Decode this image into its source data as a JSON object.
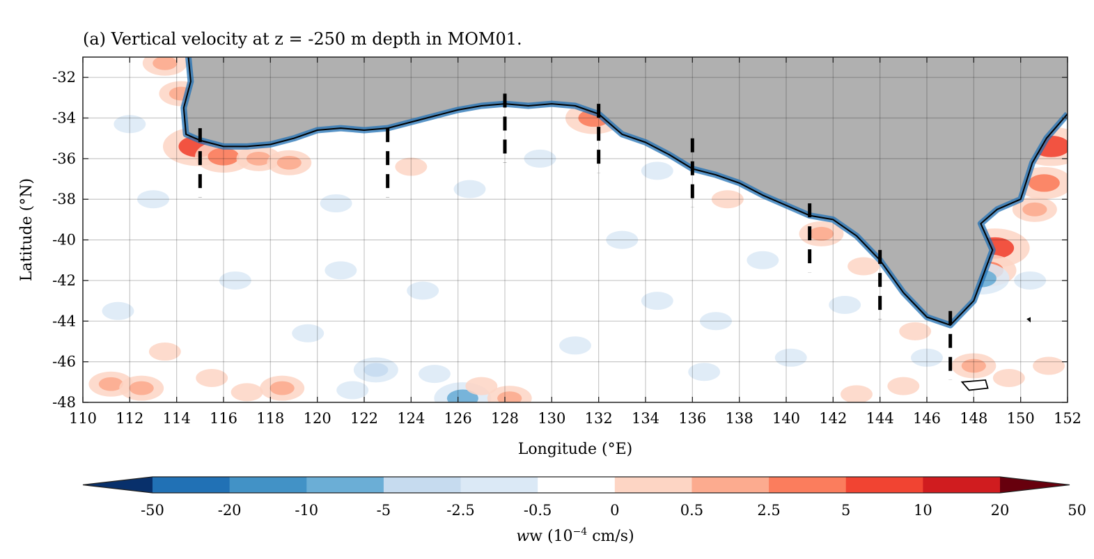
{
  "chart_data": {
    "type": "heatmap",
    "title": "(a) Vertical velocity at z = -250 m depth in MOM01.",
    "xlabel": "Longitude (°E)",
    "ylabel": "Latitude (°N)",
    "xlim": [
      110,
      152
    ],
    "ylim": [
      -48,
      -31
    ],
    "x_ticks": [
      110,
      112,
      114,
      116,
      118,
      120,
      122,
      124,
      126,
      128,
      130,
      132,
      134,
      136,
      138,
      140,
      142,
      144,
      146,
      148,
      150,
      152
    ],
    "y_ticks": [
      -48,
      -46,
      -44,
      -42,
      -40,
      -38,
      -36,
      -34,
      -32
    ],
    "grid": true,
    "colorbar": {
      "label_base": "w (10",
      "label_exp": "−4",
      "label_unit": " cm/s)",
      "levels": [
        "-50",
        "-20",
        "-10",
        "-5",
        "-2.5",
        "-0.5",
        "0",
        "0.5",
        "2.5",
        "5",
        "10",
        "20",
        "50"
      ],
      "colors": [
        "#08306b",
        "#2171b5",
        "#4292c6",
        "#6baed6",
        "#c6dbef",
        "#dbe9f6",
        "#ffffff",
        "#fdd5c4",
        "#fcab8f",
        "#fb7d5d",
        "#f14432",
        "#d01c1f",
        "#67000d"
      ],
      "extend": "both"
    },
    "land_color": "#b0b0b0",
    "coastline": [
      [
        114.5,
        -31
      ],
      [
        114.6,
        -32.2
      ],
      [
        114.3,
        -33.5
      ],
      [
        114.4,
        -34.8
      ],
      [
        115,
        -35.1
      ],
      [
        116,
        -35.4
      ],
      [
        117,
        -35.4
      ],
      [
        118,
        -35.3
      ],
      [
        119,
        -35.0
      ],
      [
        120,
        -34.6
      ],
      [
        121,
        -34.5
      ],
      [
        122,
        -34.6
      ],
      [
        123,
        -34.5
      ],
      [
        124,
        -34.2
      ],
      [
        125,
        -33.9
      ],
      [
        126,
        -33.6
      ],
      [
        127,
        -33.4
      ],
      [
        128,
        -33.3
      ],
      [
        129,
        -33.4
      ],
      [
        130,
        -33.3
      ],
      [
        131,
        -33.4
      ],
      [
        132,
        -33.8
      ],
      [
        133,
        -34.8
      ],
      [
        134,
        -35.2
      ],
      [
        135,
        -35.8
      ],
      [
        136,
        -36.5
      ],
      [
        137,
        -36.8
      ],
      [
        138,
        -37.2
      ],
      [
        139,
        -37.8
      ],
      [
        140,
        -38.3
      ],
      [
        141,
        -38.8
      ],
      [
        142,
        -39.0
      ],
      [
        143,
        -39.8
      ],
      [
        144,
        -41.0
      ],
      [
        145,
        -42.6
      ],
      [
        146,
        -43.8
      ],
      [
        147,
        -44.2
      ],
      [
        148,
        -43.0
      ],
      [
        148.8,
        -40.5
      ],
      [
        148.3,
        -39.2
      ],
      [
        149,
        -38.5
      ],
      [
        150,
        -38.0
      ],
      [
        150.5,
        -36.2
      ],
      [
        151.1,
        -35.0
      ],
      [
        152,
        -33.8
      ]
    ],
    "sections": [
      {
        "lon": 115,
        "lat_start": -34.5,
        "lat_end": -37.9
      },
      {
        "lon": 123,
        "lat_start": -34.5,
        "lat_end": -37.9
      },
      {
        "lon": 128,
        "lat_start": -32.8,
        "lat_end": -36.2
      },
      {
        "lon": 132,
        "lat_start": -33.3,
        "lat_end": -36.7
      },
      {
        "lon": 136,
        "lat_start": -35.0,
        "lat_end": -38.4
      },
      {
        "lon": 141,
        "lat_start": -38.2,
        "lat_end": -41.6
      },
      {
        "lon": 144,
        "lat_start": -40.5,
        "lat_end": -43.9
      },
      {
        "lon": 147,
        "lat_start": -43.5,
        "lat_end": -46.9
      }
    ],
    "anomalies": [
      {
        "lon": 114.9,
        "lat": -35.4,
        "sign": 1,
        "strength": 4
      },
      {
        "lon": 116.0,
        "lat": -35.9,
        "sign": 1,
        "strength": 3
      },
      {
        "lon": 117.5,
        "lat": -36.0,
        "sign": 1,
        "strength": 2
      },
      {
        "lon": 118.8,
        "lat": -36.2,
        "sign": 1,
        "strength": 2
      },
      {
        "lon": 114.2,
        "lat": -32.8,
        "sign": 1,
        "strength": 2
      },
      {
        "lon": 113.5,
        "lat": -31.3,
        "sign": 1,
        "strength": 2
      },
      {
        "lon": 112.0,
        "lat": -34.3,
        "sign": -1,
        "strength": 1
      },
      {
        "lon": 113.0,
        "lat": -38.0,
        "sign": -1,
        "strength": 1
      },
      {
        "lon": 120.8,
        "lat": -38.2,
        "sign": -1,
        "strength": 1
      },
      {
        "lon": 124.0,
        "lat": -36.4,
        "sign": 1,
        "strength": 1
      },
      {
        "lon": 126.5,
        "lat": -37.5,
        "sign": -1,
        "strength": 1
      },
      {
        "lon": 119.6,
        "lat": -44.6,
        "sign": -1,
        "strength": 1
      },
      {
        "lon": 113.5,
        "lat": -45.5,
        "sign": 1,
        "strength": 1
      },
      {
        "lon": 115.5,
        "lat": -46.8,
        "sign": 1,
        "strength": 1
      },
      {
        "lon": 111.2,
        "lat": -47.1,
        "sign": 1,
        "strength": 2
      },
      {
        "lon": 112.5,
        "lat": -47.3,
        "sign": 1,
        "strength": 2
      },
      {
        "lon": 117.0,
        "lat": -47.5,
        "sign": 1,
        "strength": 1
      },
      {
        "lon": 118.5,
        "lat": -47.3,
        "sign": 1,
        "strength": 2
      },
      {
        "lon": 122.5,
        "lat": -46.4,
        "sign": -1,
        "strength": 2
      },
      {
        "lon": 121.5,
        "lat": -47.4,
        "sign": -1,
        "strength": 1
      },
      {
        "lon": 125.0,
        "lat": -46.6,
        "sign": -1,
        "strength": 1
      },
      {
        "lon": 126.2,
        "lat": -47.8,
        "sign": -1,
        "strength": 3
      },
      {
        "lon": 127.0,
        "lat": -47.2,
        "sign": 1,
        "strength": 1
      },
      {
        "lon": 128.2,
        "lat": -47.8,
        "sign": 1,
        "strength": 2
      },
      {
        "lon": 131.0,
        "lat": -45.2,
        "sign": -1,
        "strength": 1
      },
      {
        "lon": 134.5,
        "lat": -43.0,
        "sign": -1,
        "strength": 1
      },
      {
        "lon": 136.5,
        "lat": -46.5,
        "sign": -1,
        "strength": 1
      },
      {
        "lon": 139.0,
        "lat": -41.0,
        "sign": -1,
        "strength": 1
      },
      {
        "lon": 140.2,
        "lat": -45.8,
        "sign": -1,
        "strength": 1
      },
      {
        "lon": 142.5,
        "lat": -43.2,
        "sign": -1,
        "strength": 1
      },
      {
        "lon": 143.0,
        "lat": -47.6,
        "sign": 1,
        "strength": 1
      },
      {
        "lon": 145.0,
        "lat": -47.2,
        "sign": 1,
        "strength": 1
      },
      {
        "lon": 148.0,
        "lat": -46.2,
        "sign": 1,
        "strength": 2
      },
      {
        "lon": 149.5,
        "lat": -46.8,
        "sign": 1,
        "strength": 1
      },
      {
        "lon": 151.2,
        "lat": -46.2,
        "sign": 1,
        "strength": 1
      },
      {
        "lon": 150.4,
        "lat": -42.0,
        "sign": -1,
        "strength": 1
      },
      {
        "lon": 151.3,
        "lat": -35.4,
        "sign": 1,
        "strength": 4
      },
      {
        "lon": 151.0,
        "lat": -37.2,
        "sign": 1,
        "strength": 3
      },
      {
        "lon": 150.6,
        "lat": -38.5,
        "sign": 1,
        "strength": 2
      },
      {
        "lon": 148.9,
        "lat": -40.4,
        "sign": 1,
        "strength": 4
      },
      {
        "lon": 148.6,
        "lat": -41.5,
        "sign": 1,
        "strength": 3
      },
      {
        "lon": 148.3,
        "lat": -41.9,
        "sign": -1,
        "strength": 3
      },
      {
        "lon": 141.5,
        "lat": -39.7,
        "sign": 1,
        "strength": 2
      },
      {
        "lon": 143.3,
        "lat": -41.3,
        "sign": 1,
        "strength": 1
      },
      {
        "lon": 131.8,
        "lat": -34.0,
        "sign": 1,
        "strength": 3
      },
      {
        "lon": 137.5,
        "lat": -38.0,
        "sign": 1,
        "strength": 1
      },
      {
        "lon": 134.5,
        "lat": -36.6,
        "sign": -1,
        "strength": 1
      },
      {
        "lon": 129.5,
        "lat": -36.0,
        "sign": -1,
        "strength": 1
      },
      {
        "lon": 121.0,
        "lat": -41.5,
        "sign": -1,
        "strength": 1
      },
      {
        "lon": 116.5,
        "lat": -42.0,
        "sign": -1,
        "strength": 1
      },
      {
        "lon": 111.5,
        "lat": -43.5,
        "sign": -1,
        "strength": 1
      },
      {
        "lon": 133.0,
        "lat": -40.0,
        "sign": -1,
        "strength": 1
      },
      {
        "lon": 124.5,
        "lat": -42.5,
        "sign": -1,
        "strength": 1
      },
      {
        "lon": 137.0,
        "lat": -44.0,
        "sign": -1,
        "strength": 1
      },
      {
        "lon": 146.0,
        "lat": -45.8,
        "sign": -1,
        "strength": 1
      },
      {
        "lon": 145.5,
        "lat": -44.5,
        "sign": 1,
        "strength": 1
      }
    ],
    "islands": [
      [
        [
          147.5,
          -47.0
        ],
        [
          148.5,
          -46.9
        ],
        [
          148.6,
          -47.3
        ],
        [
          147.8,
          -47.4
        ],
        [
          147.5,
          -47.0
        ]
      ],
      [
        [
          150.3,
          -43.9
        ],
        [
          150.4,
          -43.85
        ],
        [
          150.4,
          -44.0
        ],
        [
          150.3,
          -43.9
        ]
      ]
    ]
  }
}
